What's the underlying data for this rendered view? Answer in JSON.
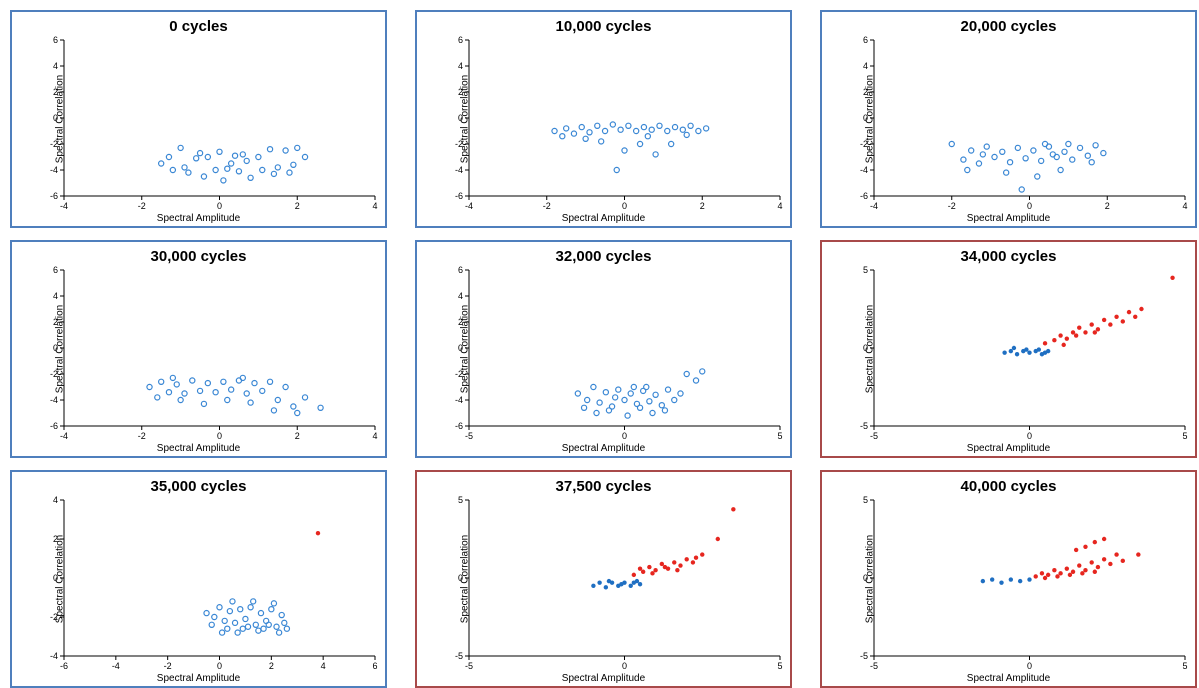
{
  "global": {
    "xlabel": "Spectral Amplitude",
    "ylabel": "Spectral Correlation",
    "marker_open_color": "#3a87d4",
    "marker_filled_blue": "#1f6fc2",
    "marker_filled_red": "#e6261f",
    "marker_radius_open": 2.6,
    "marker_radius_filled": 2.2,
    "border_blue": "#4f7fbd",
    "border_red": "#a84a4a",
    "title_fontsize": 15,
    "label_fontsize": 10,
    "tick_fontsize": 9,
    "background_color": "#ffffff",
    "axis_color": "#000000"
  },
  "panels": [
    {
      "title": "0 cycles",
      "border": "blue",
      "xlim": [
        -4,
        4
      ],
      "xtick_step": 2,
      "ylim": [
        -6,
        6
      ],
      "ytick_step": 2,
      "points_open_blue": [
        [
          -1.5,
          -3.5
        ],
        [
          -1.2,
          -4.0
        ],
        [
          -1.0,
          -2.3
        ],
        [
          -0.8,
          -4.2
        ],
        [
          -0.6,
          -3.1
        ],
        [
          -0.4,
          -4.5
        ],
        [
          -0.3,
          -3.0
        ],
        [
          -0.1,
          -4.0
        ],
        [
          0.0,
          -2.6
        ],
        [
          0.1,
          -4.8
        ],
        [
          0.3,
          -3.5
        ],
        [
          0.4,
          -2.9
        ],
        [
          0.5,
          -4.1
        ],
        [
          0.7,
          -3.3
        ],
        [
          0.8,
          -4.6
        ],
        [
          1.0,
          -3.0
        ],
        [
          1.1,
          -4.0
        ],
        [
          1.3,
          -2.4
        ],
        [
          1.5,
          -3.8
        ],
        [
          1.7,
          -2.5
        ],
        [
          1.9,
          -3.6
        ],
        [
          2.0,
          -2.3
        ],
        [
          2.2,
          -3.0
        ],
        [
          -1.3,
          -3.0
        ],
        [
          -0.9,
          -3.8
        ],
        [
          -0.5,
          -2.7
        ],
        [
          0.2,
          -3.9
        ],
        [
          0.6,
          -2.8
        ],
        [
          1.4,
          -4.3
        ],
        [
          1.8,
          -4.2
        ]
      ],
      "points_filled_blue": [],
      "points_filled_red": []
    },
    {
      "title": "10,000 cycles",
      "border": "blue",
      "xlim": [
        -4,
        4
      ],
      "xtick_step": 2,
      "ylim": [
        -6,
        6
      ],
      "ytick_step": 2,
      "points_open_blue": [
        [
          -1.8,
          -1.0
        ],
        [
          -1.5,
          -0.8
        ],
        [
          -1.3,
          -1.2
        ],
        [
          -1.1,
          -0.7
        ],
        [
          -0.9,
          -1.1
        ],
        [
          -0.7,
          -0.6
        ],
        [
          -0.5,
          -1.0
        ],
        [
          -0.3,
          -0.5
        ],
        [
          -0.1,
          -0.9
        ],
        [
          0.1,
          -0.6
        ],
        [
          0.3,
          -1.0
        ],
        [
          0.5,
          -0.7
        ],
        [
          0.7,
          -0.9
        ],
        [
          0.9,
          -0.6
        ],
        [
          1.1,
          -1.0
        ],
        [
          1.3,
          -0.7
        ],
        [
          1.5,
          -0.9
        ],
        [
          1.7,
          -0.6
        ],
        [
          1.9,
          -1.0
        ],
        [
          2.1,
          -0.8
        ],
        [
          -1.6,
          -1.4
        ],
        [
          -0.6,
          -1.8
        ],
        [
          0.0,
          -2.5
        ],
        [
          0.4,
          -2.0
        ],
        [
          0.8,
          -2.8
        ],
        [
          1.2,
          -2.0
        ],
        [
          -0.2,
          -4.0
        ],
        [
          0.6,
          -1.4
        ],
        [
          1.6,
          -1.3
        ],
        [
          -1.0,
          -1.6
        ]
      ],
      "points_filled_blue": [],
      "points_filled_red": []
    },
    {
      "title": "20,000 cycles",
      "border": "blue",
      "xlim": [
        -4,
        4
      ],
      "xtick_step": 2,
      "ylim": [
        -6,
        6
      ],
      "ytick_step": 2,
      "points_open_blue": [
        [
          -2.0,
          -2.0
        ],
        [
          -1.7,
          -3.2
        ],
        [
          -1.5,
          -2.5
        ],
        [
          -1.3,
          -3.5
        ],
        [
          -1.1,
          -2.2
        ],
        [
          -0.9,
          -3.0
        ],
        [
          -0.7,
          -2.6
        ],
        [
          -0.5,
          -3.4
        ],
        [
          -0.3,
          -2.3
        ],
        [
          -0.1,
          -3.1
        ],
        [
          0.1,
          -2.5
        ],
        [
          0.3,
          -3.3
        ],
        [
          0.5,
          -2.2
        ],
        [
          0.7,
          -3.0
        ],
        [
          0.9,
          -2.6
        ],
        [
          1.1,
          -3.2
        ],
        [
          1.3,
          -2.3
        ],
        [
          1.5,
          -2.9
        ],
        [
          1.7,
          -2.1
        ],
        [
          1.9,
          -2.7
        ],
        [
          -1.6,
          -4.0
        ],
        [
          -0.6,
          -4.2
        ],
        [
          0.2,
          -4.5
        ],
        [
          0.8,
          -4.0
        ],
        [
          -0.2,
          -5.5
        ],
        [
          0.4,
          -2.0
        ],
        [
          1.0,
          -2.0
        ],
        [
          1.6,
          -3.4
        ],
        [
          -1.2,
          -2.8
        ],
        [
          0.6,
          -2.8
        ]
      ],
      "points_filled_blue": [],
      "points_filled_red": []
    },
    {
      "title": "30,000 cycles",
      "border": "blue",
      "xlim": [
        -4,
        4
      ],
      "xtick_step": 2,
      "ylim": [
        -6,
        6
      ],
      "ytick_step": 2,
      "points_open_blue": [
        [
          -1.8,
          -3.0
        ],
        [
          -1.5,
          -2.6
        ],
        [
          -1.3,
          -3.4
        ],
        [
          -1.1,
          -2.8
        ],
        [
          -0.9,
          -3.5
        ],
        [
          -0.7,
          -2.5
        ],
        [
          -0.5,
          -3.3
        ],
        [
          -0.3,
          -2.7
        ],
        [
          -0.1,
          -3.4
        ],
        [
          0.1,
          -2.6
        ],
        [
          0.3,
          -3.2
        ],
        [
          0.5,
          -2.5
        ],
        [
          0.7,
          -3.5
        ],
        [
          0.9,
          -2.7
        ],
        [
          1.1,
          -3.3
        ],
        [
          1.3,
          -2.6
        ],
        [
          1.5,
          -4.0
        ],
        [
          1.7,
          -3.0
        ],
        [
          1.9,
          -4.5
        ],
        [
          2.2,
          -3.8
        ],
        [
          2.6,
          -4.6
        ],
        [
          -1.6,
          -3.8
        ],
        [
          -1.0,
          -4.0
        ],
        [
          -0.4,
          -4.3
        ],
        [
          0.2,
          -4.0
        ],
        [
          0.8,
          -4.2
        ],
        [
          1.4,
          -4.8
        ],
        [
          2.0,
          -5.0
        ],
        [
          -1.2,
          -2.3
        ],
        [
          0.6,
          -2.3
        ]
      ],
      "points_filled_blue": [],
      "points_filled_red": []
    },
    {
      "title": "32,000 cycles",
      "border": "blue",
      "xlim": [
        -5,
        5
      ],
      "xtick_step": 5,
      "ylim": [
        -6,
        6
      ],
      "ytick_step": 2,
      "points_open_blue": [
        [
          -1.5,
          -3.5
        ],
        [
          -1.2,
          -4.0
        ],
        [
          -1.0,
          -3.0
        ],
        [
          -0.8,
          -4.2
        ],
        [
          -0.6,
          -3.4
        ],
        [
          -0.4,
          -4.5
        ],
        [
          -0.2,
          -3.2
        ],
        [
          0.0,
          -4.0
        ],
        [
          0.2,
          -3.5
        ],
        [
          0.4,
          -4.3
        ],
        [
          0.6,
          -3.3
        ],
        [
          0.8,
          -4.1
        ],
        [
          1.0,
          -3.6
        ],
        [
          1.2,
          -4.4
        ],
        [
          1.4,
          -3.2
        ],
        [
          1.6,
          -4.0
        ],
        [
          2.0,
          -2.0
        ],
        [
          2.3,
          -2.5
        ],
        [
          2.5,
          -1.8
        ],
        [
          -1.3,
          -4.6
        ],
        [
          -0.9,
          -5.0
        ],
        [
          -0.5,
          -4.8
        ],
        [
          0.1,
          -5.2
        ],
        [
          0.5,
          -4.6
        ],
        [
          0.9,
          -5.0
        ],
        [
          1.3,
          -4.8
        ],
        [
          -0.3,
          -3.8
        ],
        [
          0.3,
          -3.0
        ],
        [
          0.7,
          -3.0
        ],
        [
          1.8,
          -3.5
        ]
      ],
      "points_filled_blue": [],
      "points_filled_red": []
    },
    {
      "title": "34,000 cycles",
      "border": "red",
      "xlim": [
        -5,
        5
      ],
      "xtick_step": 5,
      "ylim": [
        -5,
        5
      ],
      "ytick_step": 5,
      "points_open_blue": [],
      "points_filled_blue": [
        [
          -0.8,
          -0.3
        ],
        [
          -0.6,
          -0.2
        ],
        [
          -0.4,
          -0.4
        ],
        [
          -0.2,
          -0.2
        ],
        [
          0.0,
          -0.3
        ],
        [
          0.2,
          -0.2
        ],
        [
          0.4,
          -0.4
        ],
        [
          0.6,
          -0.2
        ],
        [
          -0.5,
          0.0
        ],
        [
          -0.1,
          -0.1
        ],
        [
          0.3,
          -0.1
        ],
        [
          0.5,
          -0.3
        ]
      ],
      "points_filled_red": [
        [
          0.5,
          0.3
        ],
        [
          0.8,
          0.5
        ],
        [
          1.0,
          0.8
        ],
        [
          1.2,
          0.6
        ],
        [
          1.4,
          1.0
        ],
        [
          1.6,
          1.3
        ],
        [
          1.8,
          1.0
        ],
        [
          2.0,
          1.5
        ],
        [
          2.2,
          1.2
        ],
        [
          2.4,
          1.8
        ],
        [
          2.6,
          1.5
        ],
        [
          2.8,
          2.0
        ],
        [
          3.0,
          1.7
        ],
        [
          3.2,
          2.3
        ],
        [
          3.4,
          2.0
        ],
        [
          3.6,
          2.5
        ],
        [
          4.6,
          4.5
        ],
        [
          1.1,
          0.2
        ],
        [
          1.5,
          0.8
        ],
        [
          2.1,
          1.0
        ]
      ]
    },
    {
      "title": "35,000 cycles",
      "border": "blue",
      "xlim": [
        -6,
        6
      ],
      "xtick_step": 2,
      "ylim": [
        -4,
        4
      ],
      "ytick_step": 2,
      "points_open_blue": [
        [
          -0.5,
          -1.8
        ],
        [
          -0.2,
          -2.0
        ],
        [
          0.0,
          -1.5
        ],
        [
          0.2,
          -2.2
        ],
        [
          0.4,
          -1.7
        ],
        [
          0.6,
          -2.3
        ],
        [
          0.8,
          -1.6
        ],
        [
          1.0,
          -2.1
        ],
        [
          1.2,
          -1.5
        ],
        [
          1.4,
          -2.4
        ],
        [
          1.6,
          -1.8
        ],
        [
          1.8,
          -2.2
        ],
        [
          2.0,
          -1.6
        ],
        [
          2.2,
          -2.5
        ],
        [
          2.4,
          -1.9
        ],
        [
          2.6,
          -2.6
        ],
        [
          0.3,
          -2.6
        ],
        [
          0.7,
          -2.8
        ],
        [
          1.1,
          -2.5
        ],
        [
          1.5,
          -2.7
        ],
        [
          1.9,
          -2.4
        ],
        [
          2.3,
          -2.8
        ],
        [
          0.5,
          -1.2
        ],
        [
          1.3,
          -1.2
        ],
        [
          2.1,
          -1.3
        ],
        [
          -0.3,
          -2.4
        ],
        [
          0.1,
          -2.8
        ],
        [
          0.9,
          -2.6
        ],
        [
          1.7,
          -2.6
        ],
        [
          2.5,
          -2.3
        ]
      ],
      "points_filled_blue": [],
      "points_filled_red": [
        [
          3.8,
          2.3
        ]
      ]
    },
    {
      "title": "37,500 cycles",
      "border": "red",
      "xlim": [
        -5,
        5
      ],
      "xtick_step": 5,
      "ylim": [
        -5,
        5
      ],
      "ytick_step": 5,
      "points_open_blue": [],
      "points_filled_blue": [
        [
          -1.0,
          -0.5
        ],
        [
          -0.8,
          -0.3
        ],
        [
          -0.6,
          -0.6
        ],
        [
          -0.4,
          -0.3
        ],
        [
          -0.2,
          -0.5
        ],
        [
          0.0,
          -0.3
        ],
        [
          0.2,
          -0.5
        ],
        [
          0.4,
          -0.2
        ],
        [
          -0.5,
          -0.2
        ],
        [
          -0.1,
          -0.4
        ],
        [
          0.3,
          -0.3
        ],
        [
          0.5,
          -0.4
        ]
      ],
      "points_filled_red": [
        [
          0.3,
          0.2
        ],
        [
          0.6,
          0.4
        ],
        [
          0.8,
          0.7
        ],
        [
          1.0,
          0.5
        ],
        [
          1.2,
          0.9
        ],
        [
          1.4,
          0.6
        ],
        [
          1.6,
          1.0
        ],
        [
          1.8,
          0.8
        ],
        [
          2.0,
          1.2
        ],
        [
          2.2,
          1.0
        ],
        [
          2.5,
          1.5
        ],
        [
          3.0,
          2.5
        ],
        [
          3.5,
          4.4
        ],
        [
          0.5,
          0.6
        ],
        [
          0.9,
          0.3
        ],
        [
          1.3,
          0.7
        ],
        [
          1.7,
          0.5
        ],
        [
          2.3,
          1.3
        ]
      ]
    },
    {
      "title": "40,000 cycles",
      "border": "red",
      "xlim": [
        -5,
        5
      ],
      "xtick_step": 5,
      "ylim": [
        -5,
        5
      ],
      "ytick_step": 5,
      "points_open_blue": [],
      "points_filled_blue": [
        [
          -1.5,
          -0.2
        ],
        [
          -1.2,
          -0.1
        ],
        [
          -0.9,
          -0.3
        ],
        [
          -0.6,
          -0.1
        ],
        [
          -0.3,
          -0.2
        ],
        [
          0.0,
          -0.1
        ]
      ],
      "points_filled_red": [
        [
          0.2,
          0.1
        ],
        [
          0.4,
          0.3
        ],
        [
          0.6,
          0.2
        ],
        [
          0.8,
          0.5
        ],
        [
          1.0,
          0.3
        ],
        [
          1.2,
          0.6
        ],
        [
          1.4,
          0.4
        ],
        [
          1.6,
          0.8
        ],
        [
          1.8,
          0.5
        ],
        [
          2.0,
          1.0
        ],
        [
          2.2,
          0.7
        ],
        [
          2.4,
          1.2
        ],
        [
          2.6,
          0.9
        ],
        [
          2.8,
          1.5
        ],
        [
          3.0,
          1.1
        ],
        [
          1.5,
          1.8
        ],
        [
          1.8,
          2.0
        ],
        [
          2.1,
          2.3
        ],
        [
          2.4,
          2.5
        ],
        [
          3.5,
          1.5
        ],
        [
          0.5,
          0.0
        ],
        [
          0.9,
          0.1
        ],
        [
          1.3,
          0.2
        ],
        [
          1.7,
          0.3
        ],
        [
          2.1,
          0.4
        ]
      ]
    }
  ]
}
